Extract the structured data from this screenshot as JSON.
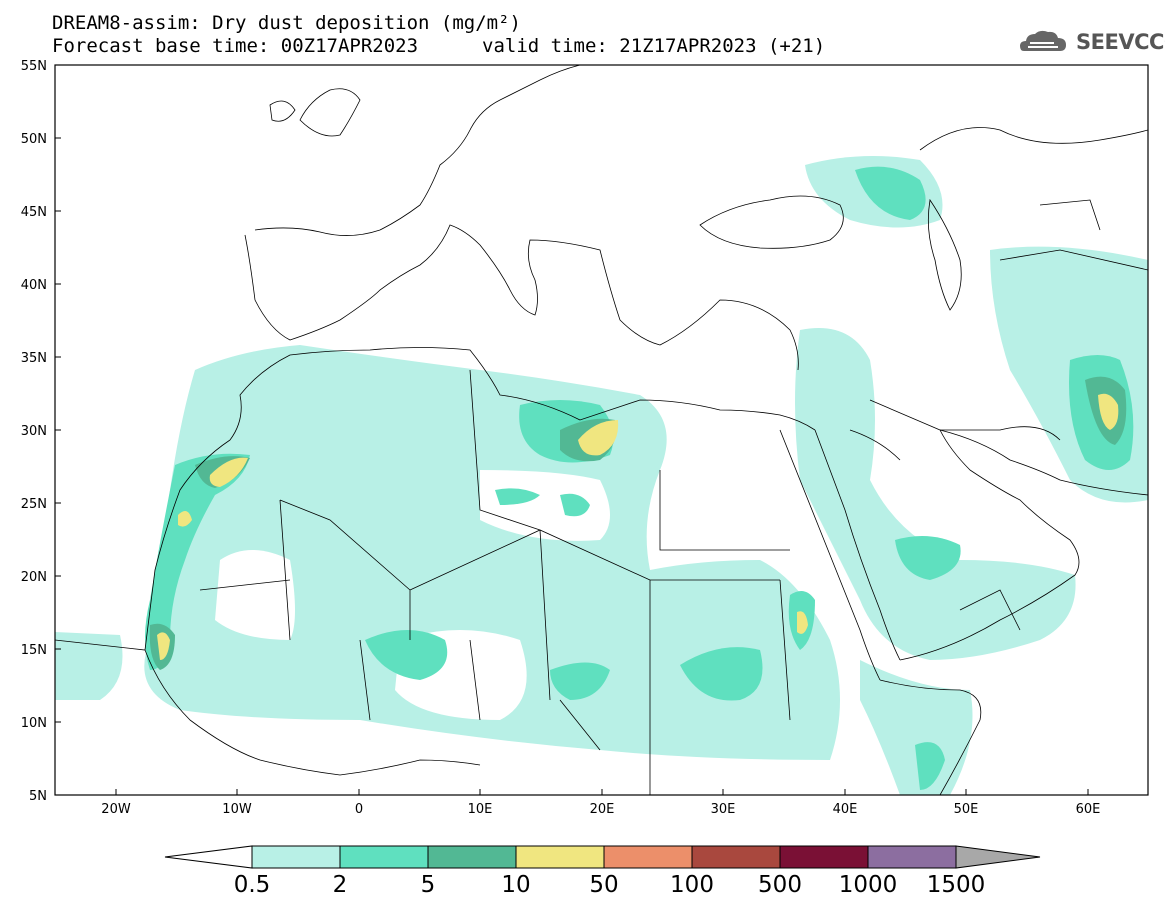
{
  "header": {
    "title_line1": "DREAM8-assim: Dry dust deposition (mg/m²)",
    "title_line2_base": "Forecast base time: 00Z17APR2023",
    "title_line2_valid": "valid time: 21Z17APR2023 (+21)",
    "logo_text": "SEEVCCC",
    "logo_icon": "cloud-icon"
  },
  "map": {
    "lon_range": [
      -25,
      65
    ],
    "lat_range": [
      5,
      55
    ],
    "lat_ticks": [
      "55N",
      "50N",
      "45N",
      "40N",
      "35N",
      "30N",
      "25N",
      "20N",
      "15N",
      "10N",
      "5N"
    ],
    "lon_ticks": [
      "20W",
      "10W",
      "0",
      "10E",
      "20E",
      "30E",
      "40E",
      "50E",
      "60E"
    ]
  },
  "colorbar": {
    "labels": [
      "0.5",
      "2",
      "5",
      "10",
      "50",
      "100",
      "500",
      "1000",
      "1500"
    ],
    "colors": [
      "#ffffff",
      "#b8f0e6",
      "#5fe0bf",
      "#52b894",
      "#f0e680",
      "#ec8f6a",
      "#a9483e",
      "#7a1035",
      "#8c6ea0",
      "#a8a8a8"
    ]
  }
}
